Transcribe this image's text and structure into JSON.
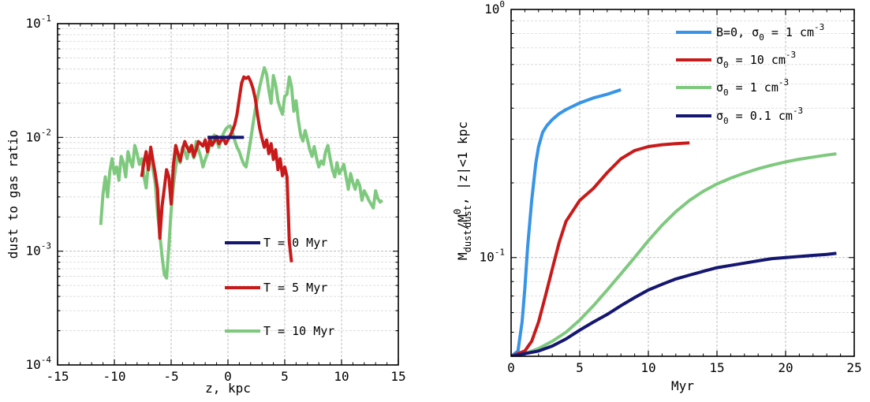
{
  "chart_data": [
    {
      "type": "line",
      "xlabel": "z, kpc",
      "ylabel": "dust to gas ratio",
      "xlim": [
        -15,
        15
      ],
      "ylim": [
        0.0001,
        0.1
      ],
      "yscale": "log",
      "grid": true,
      "legend_position": "center-right",
      "x_ticks": [
        "-15",
        "-10",
        "-5",
        "0",
        "5",
        "10",
        "15"
      ],
      "y_ticks": [
        {
          "base": "10",
          "exp": "-4"
        },
        {
          "base": "10",
          "exp": "-3"
        },
        {
          "base": "10",
          "exp": "-2"
        },
        {
          "base": "10",
          "exp": "-1"
        }
      ],
      "series": [
        {
          "name": "T = 10 Myr",
          "color": "#7fc97f",
          "x": [
            -11.2,
            -11.0,
            -10.8,
            -10.6,
            -10.4,
            -10.2,
            -10.0,
            -9.8,
            -9.6,
            -9.4,
            -9.2,
            -9.0,
            -8.8,
            -8.6,
            -8.4,
            -8.2,
            -8.0,
            -7.8,
            -7.6,
            -7.4,
            -7.2,
            -7.0,
            -6.8,
            -6.6,
            -6.4,
            -6.2,
            -6.0,
            -5.8,
            -5.6,
            -5.4,
            -5.2,
            -5.0,
            -4.8,
            -4.6,
            -4.4,
            -4.2,
            -4.0,
            -3.8,
            -3.6,
            -3.4,
            -3.2,
            -3.0,
            -2.8,
            -2.6,
            -2.4,
            -2.2,
            -2.0,
            -1.8,
            -1.6,
            -1.4,
            -1.2,
            -1.0,
            -0.8,
            -0.6,
            -0.4,
            -0.2,
            0.0,
            0.2,
            0.4,
            0.6,
            0.8,
            1.0,
            1.2,
            1.4,
            1.6,
            1.8,
            2.0,
            2.2,
            2.4,
            2.6,
            2.8,
            3.0,
            3.2,
            3.4,
            3.6,
            3.8,
            4.0,
            4.2,
            4.4,
            4.6,
            4.8,
            5.0,
            5.2,
            5.4,
            5.6,
            5.8,
            6.0,
            6.2,
            6.4,
            6.6,
            6.8,
            7.0,
            7.2,
            7.4,
            7.6,
            7.8,
            8.0,
            8.2,
            8.4,
            8.6,
            8.8,
            9.0,
            9.2,
            9.4,
            9.6,
            9.8,
            10.0,
            10.2,
            10.4,
            10.6,
            10.8,
            11.0,
            11.2,
            11.4,
            11.6,
            11.8,
            12.0,
            12.2,
            12.4,
            12.6,
            12.8,
            13.0,
            13.2,
            13.4,
            13.6
          ],
          "y": [
            0.0017,
            0.0032,
            0.0045,
            0.003,
            0.005,
            0.0065,
            0.0048,
            0.0055,
            0.0042,
            0.0068,
            0.006,
            0.0045,
            0.0075,
            0.0062,
            0.0055,
            0.0085,
            0.0072,
            0.0058,
            0.0065,
            0.0046,
            0.0036,
            0.006,
            0.0072,
            0.0052,
            0.004,
            0.0022,
            0.0014,
            0.0009,
            0.00062,
            0.00058,
            0.0011,
            0.0023,
            0.0038,
            0.0055,
            0.0072,
            0.006,
            0.0082,
            0.0075,
            0.0065,
            0.0082,
            0.0076,
            0.0066,
            0.0092,
            0.0078,
            0.0068,
            0.0055,
            0.0064,
            0.0072,
            0.0085,
            0.0093,
            0.0105,
            0.0095,
            0.0082,
            0.0094,
            0.0108,
            0.0118,
            0.0124,
            0.0126,
            0.011,
            0.0094,
            0.0082,
            0.0075,
            0.0065,
            0.0058,
            0.0055,
            0.0072,
            0.0095,
            0.013,
            0.0175,
            0.022,
            0.028,
            0.034,
            0.041,
            0.036,
            0.026,
            0.02,
            0.035,
            0.029,
            0.021,
            0.018,
            0.016,
            0.023,
            0.024,
            0.034,
            0.028,
            0.017,
            0.021,
            0.014,
            0.0105,
            0.0093,
            0.0115,
            0.0096,
            0.0078,
            0.0068,
            0.0083,
            0.0066,
            0.0055,
            0.0062,
            0.0058,
            0.0075,
            0.0085,
            0.0065,
            0.0052,
            0.0045,
            0.006,
            0.0048,
            0.0052,
            0.0058,
            0.0045,
            0.0035,
            0.0048,
            0.004,
            0.0035,
            0.0042,
            0.0038,
            0.0028,
            0.0034,
            0.0031,
            0.0028,
            0.0026,
            0.0024,
            0.0034,
            0.0029,
            0.0027,
            0.0028
          ]
        },
        {
          "name": "T = 5 Myr",
          "color": "#c81a1a",
          "x": [
            -7.6,
            -7.4,
            -7.2,
            -7.0,
            -6.8,
            -6.6,
            -6.4,
            -6.2,
            -6.0,
            -5.8,
            -5.6,
            -5.4,
            -5.2,
            -5.0,
            -4.8,
            -4.6,
            -4.4,
            -4.2,
            -4.0,
            -3.8,
            -3.6,
            -3.4,
            -3.2,
            -3.0,
            -2.8,
            -2.6,
            -2.4,
            -2.2,
            -2.0,
            -1.8,
            -1.6,
            -1.4,
            -1.2,
            -1.0,
            -0.8,
            -0.6,
            -0.4,
            -0.2,
            0.0,
            0.2,
            0.4,
            0.6,
            0.8,
            1.0,
            1.2,
            1.4,
            1.6,
            1.8,
            2.0,
            2.2,
            2.4,
            2.6,
            2.8,
            3.0,
            3.2,
            3.4,
            3.6,
            3.8,
            4.0,
            4.2,
            4.4,
            4.6,
            4.8,
            5.0,
            5.2,
            5.4,
            5.6
          ],
          "y": [
            0.0045,
            0.006,
            0.0075,
            0.0052,
            0.0082,
            0.0062,
            0.0048,
            0.0035,
            0.0013,
            0.0025,
            0.0036,
            0.0052,
            0.0045,
            0.0026,
            0.0058,
            0.0085,
            0.0072,
            0.0062,
            0.0078,
            0.0092,
            0.0082,
            0.0075,
            0.0085,
            0.0068,
            0.0078,
            0.0092,
            0.0088,
            0.0084,
            0.0095,
            0.0075,
            0.0098,
            0.0085,
            0.0092,
            0.0102,
            0.0088,
            0.0094,
            0.0098,
            0.0088,
            0.0095,
            0.0104,
            0.0115,
            0.013,
            0.016,
            0.022,
            0.03,
            0.034,
            0.033,
            0.034,
            0.031,
            0.027,
            0.022,
            0.016,
            0.012,
            0.0098,
            0.0082,
            0.0095,
            0.0072,
            0.0088,
            0.0064,
            0.0078,
            0.0052,
            0.0065,
            0.0046,
            0.0055,
            0.0045,
            0.0012,
            0.0008
          ]
        },
        {
          "name": "T = 0 Myr",
          "color": "#141670",
          "x": [
            -1.8,
            1.4
          ],
          "y": [
            0.01,
            0.01
          ]
        }
      ]
    },
    {
      "type": "line",
      "xlabel": "Myr",
      "ylabel": {
        "main": "M",
        "sub1": "dust",
        "mid": "/M",
        "sup": "0",
        "sub2": "dust",
        "tail": ",  |z|<1 kpc"
      },
      "xlim": [
        0,
        25
      ],
      "ylim": [
        0.04,
        1
      ],
      "yscale": "log",
      "grid": true,
      "legend_position": "top-right",
      "x_ticks": [
        "0",
        "5",
        "10",
        "15",
        "20",
        "25"
      ],
      "y_ticks": [
        {
          "base": "10",
          "exp": "-1"
        },
        {
          "base": "10",
          "exp": "0"
        }
      ],
      "series": [
        {
          "name": "B=0, σ0 = 1 cm-3",
          "legend_parts": {
            "pre": "B=0, σ",
            "sub": "0",
            "mid": " = 1 cm",
            "sup": "-3"
          },
          "color": "#3794e6",
          "x": [
            0,
            0.5,
            0.8,
            1.0,
            1.2,
            1.5,
            1.8,
            2.0,
            2.3,
            2.6,
            3.0,
            3.5,
            4.0,
            5.0,
            6.0,
            7.0,
            8.0
          ],
          "y": [
            0.04,
            0.042,
            0.055,
            0.075,
            0.11,
            0.17,
            0.24,
            0.28,
            0.32,
            0.34,
            0.36,
            0.38,
            0.395,
            0.42,
            0.44,
            0.455,
            0.475
          ]
        },
        {
          "name": "σ0 = 10 cm-3",
          "legend_parts": {
            "pre": "σ",
            "sub": "0",
            "mid": " = 10 cm",
            "sup": "-3"
          },
          "color": "#c81a1a",
          "x": [
            0,
            1.0,
            1.5,
            2.0,
            2.5,
            3.0,
            3.5,
            4.0,
            5.0,
            6.0,
            7.0,
            8.0,
            9.0,
            10.0,
            11.0,
            12.0,
            13.0
          ],
          "y": [
            0.04,
            0.042,
            0.046,
            0.055,
            0.07,
            0.09,
            0.115,
            0.14,
            0.17,
            0.19,
            0.22,
            0.25,
            0.27,
            0.28,
            0.285,
            0.288,
            0.29
          ]
        },
        {
          "name": "σ0 = 1 cm-3",
          "legend_parts": {
            "pre": "σ",
            "sub": "0",
            "mid": " = 1 cm",
            "sup": "-3"
          },
          "color": "#7fc97f",
          "x": [
            0,
            1,
            2,
            3,
            4,
            5,
            6,
            7,
            8,
            9,
            10,
            11,
            12,
            13,
            14,
            15,
            16,
            17,
            18,
            19,
            20,
            21,
            22,
            23,
            23.7
          ],
          "y": [
            0.04,
            0.041,
            0.043,
            0.046,
            0.05,
            0.056,
            0.064,
            0.074,
            0.086,
            0.1,
            0.117,
            0.135,
            0.153,
            0.17,
            0.185,
            0.198,
            0.209,
            0.219,
            0.228,
            0.236,
            0.243,
            0.249,
            0.254,
            0.259,
            0.262
          ]
        },
        {
          "name": "σ0 = 0.1 cm-3",
          "legend_parts": {
            "pre": "σ",
            "sub": "0",
            "mid": " = 0.1 cm",
            "sup": "-3"
          },
          "color": "#141670",
          "x": [
            0,
            1,
            2,
            3,
            4,
            5,
            6,
            7,
            8,
            9,
            10,
            11,
            12,
            13,
            14,
            15,
            16,
            17,
            18,
            19,
            20,
            21,
            22,
            23,
            23.7
          ],
          "y": [
            0.04,
            0.041,
            0.042,
            0.044,
            0.047,
            0.051,
            0.055,
            0.059,
            0.064,
            0.069,
            0.074,
            0.078,
            0.082,
            0.085,
            0.088,
            0.091,
            0.093,
            0.095,
            0.097,
            0.099,
            0.1,
            0.101,
            0.102,
            0.103,
            0.104
          ]
        }
      ]
    }
  ]
}
